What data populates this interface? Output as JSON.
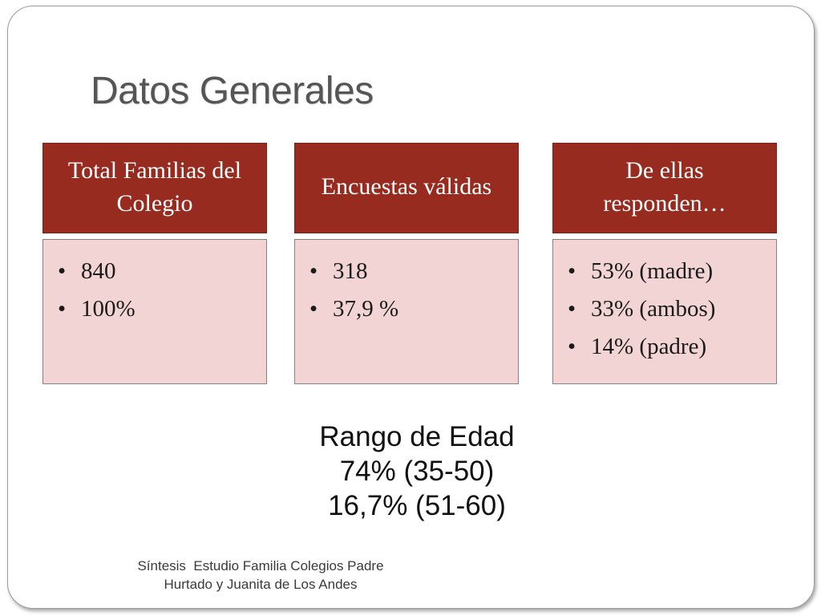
{
  "slide": {
    "title": "Datos Generales",
    "columns": [
      {
        "header": "Total Familias del Colegio",
        "items": [
          "840",
          "100%"
        ]
      },
      {
        "header": "Encuestas válidas",
        "items": [
          "318",
          "37,9 %"
        ]
      },
      {
        "header": "De ellas responden…",
        "items": [
          "53% (madre)",
          "33% (ambos)",
          "14% (padre)"
        ]
      }
    ],
    "age_range": {
      "title": "Rango de Edad",
      "lines": [
        "74% (35-50)",
        "16,7% (51-60)"
      ]
    },
    "footer": {
      "line1": "Síntesis  Estudio Familia Colegios Padre",
      "line2": "Hurtado y Juanita de Los Andes"
    }
  },
  "colors": {
    "header_bg": "#982b1f",
    "body_bg": "#f3d4d4",
    "title_text": "#555555"
  }
}
